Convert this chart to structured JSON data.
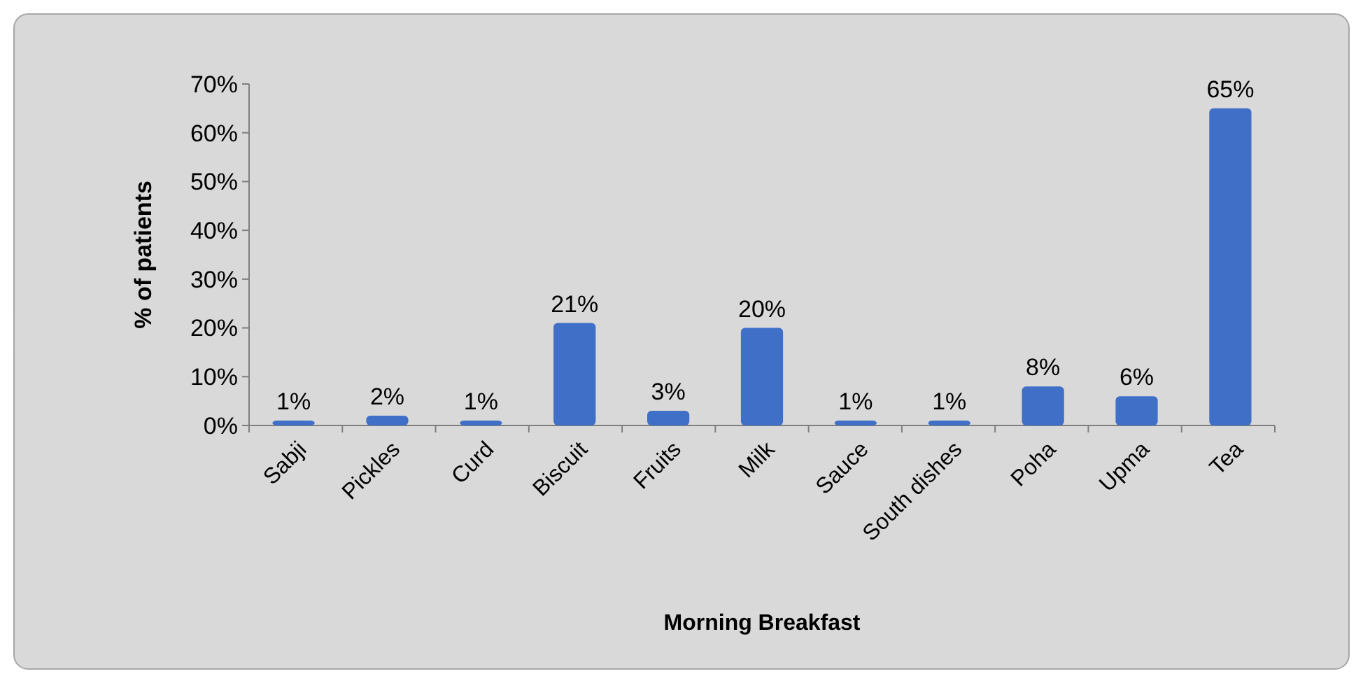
{
  "chart_data": {
    "type": "bar",
    "xlabel": "Morning Breakfast",
    "ylabel": "% of patients",
    "categories": [
      "Sabji",
      "Pickles",
      "Curd",
      "Biscuit",
      "Fruits",
      "Milk",
      "Sauce",
      "South dishes",
      "Poha",
      "Upma",
      "Tea"
    ],
    "values": [
      1,
      2,
      1,
      21,
      3,
      20,
      1,
      1,
      8,
      6,
      65
    ],
    "value_labels": [
      "1%",
      "2%",
      "1%",
      "21%",
      "3%",
      "20%",
      "1%",
      "1%",
      "8%",
      "6%",
      "65%"
    ],
    "color": "#3f6fc6",
    "ylim": [
      0,
      70
    ],
    "yticks": [
      {
        "value": 0,
        "label": "0%"
      },
      {
        "value": 10,
        "label": "10%"
      },
      {
        "value": 20,
        "label": "20%"
      },
      {
        "value": 30,
        "label": "30%"
      },
      {
        "value": 40,
        "label": "40%"
      },
      {
        "value": 50,
        "label": "50%"
      },
      {
        "value": 60,
        "label": "60%"
      },
      {
        "value": 70,
        "label": "70%"
      }
    ],
    "grid": false
  }
}
